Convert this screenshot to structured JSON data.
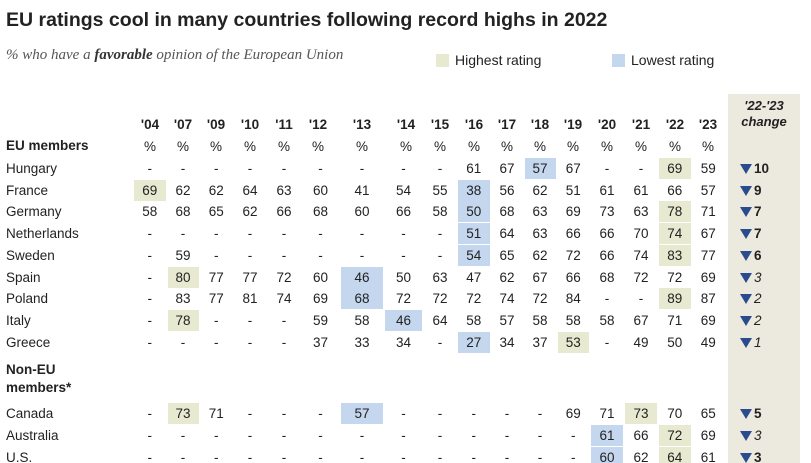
{
  "header": {
    "title": "EU ratings cool in many countries following record highs in 2022",
    "subtitle": [
      "% who have a ",
      "favorable",
      " opinion of the European Union"
    ]
  },
  "legend": [
    {
      "label": "Highest rating",
      "color": "#e7e9d0"
    },
    {
      "label": "Lowest rating",
      "color": "#c5d7ef"
    }
  ],
  "table": {
    "columns": [
      "'04",
      "'07",
      "'09",
      "'10",
      "'11",
      "'12",
      "'13",
      "'14",
      "'15",
      "'16",
      "'17",
      "'18",
      "'19",
      "'20",
      "'21",
      "'22",
      "'23"
    ],
    "unit": "%",
    "change_header": [
      "'22-'23",
      "change"
    ],
    "groups": [
      {
        "label": [
          "EU members"
        ],
        "rows": [
          {
            "name": "Hungary",
            "values": [
              "-",
              "-",
              "-",
              "-",
              "-",
              "-",
              "-",
              "-",
              "-",
              61,
              67,
              57,
              67,
              "-",
              "-",
              69,
              59
            ],
            "highest": [
              15
            ],
            "lowest": [
              11
            ],
            "change": 10,
            "change_bold": true
          },
          {
            "name": "France",
            "values": [
              69,
              62,
              62,
              64,
              63,
              60,
              41,
              54,
              55,
              38,
              56,
              62,
              51,
              61,
              61,
              66,
              57
            ],
            "highest": [
              0
            ],
            "lowest": [
              9
            ],
            "change": 9,
            "change_bold": true
          },
          {
            "name": "Germany",
            "values": [
              58,
              68,
              65,
              62,
              66,
              68,
              60,
              66,
              58,
              50,
              68,
              63,
              69,
              73,
              63,
              78,
              71
            ],
            "highest": [
              15
            ],
            "lowest": [
              9
            ],
            "change": 7,
            "change_bold": true
          },
          {
            "name": "Netherlands",
            "values": [
              "-",
              "-",
              "-",
              "-",
              "-",
              "-",
              "-",
              "-",
              "-",
              51,
              64,
              63,
              66,
              66,
              70,
              74,
              67
            ],
            "highest": [
              15
            ],
            "lowest": [
              9
            ],
            "change": 7,
            "change_bold": true
          },
          {
            "name": "Sweden",
            "values": [
              "-",
              59,
              "-",
              "-",
              "-",
              "-",
              "-",
              "-",
              "-",
              54,
              65,
              62,
              72,
              66,
              74,
              83,
              77
            ],
            "highest": [
              15
            ],
            "lowest": [
              9
            ],
            "change": 6,
            "change_bold": true
          },
          {
            "name": "Spain",
            "values": [
              "-",
              80,
              77,
              77,
              72,
              60,
              46,
              50,
              63,
              47,
              62,
              67,
              66,
              68,
              72,
              72,
              69
            ],
            "highest": [
              1
            ],
            "lowest": [
              6
            ],
            "change": 3,
            "change_bold": false
          },
          {
            "name": "Poland",
            "values": [
              "-",
              83,
              77,
              81,
              74,
              69,
              68,
              72,
              72,
              72,
              74,
              72,
              84,
              "-",
              "-",
              89,
              87
            ],
            "highest": [
              15
            ],
            "lowest": [
              6
            ],
            "change": 2,
            "change_bold": false
          },
          {
            "name": "Italy",
            "values": [
              "-",
              78,
              "-",
              "-",
              "-",
              59,
              58,
              46,
              64,
              58,
              57,
              58,
              58,
              58,
              67,
              71,
              69
            ],
            "highest": [
              1
            ],
            "lowest": [
              7
            ],
            "change": 2,
            "change_bold": false
          },
          {
            "name": "Greece",
            "values": [
              "-",
              "-",
              "-",
              "-",
              "-",
              37,
              33,
              34,
              "-",
              27,
              34,
              37,
              53,
              "-",
              49,
              50,
              49
            ],
            "highest": [
              12
            ],
            "lowest": [
              9
            ],
            "change": 1,
            "change_bold": false
          }
        ]
      },
      {
        "label": [
          "Non-EU",
          "members*"
        ],
        "rows": [
          {
            "name": "Canada",
            "values": [
              "-",
              73,
              71,
              "-",
              "-",
              "-",
              57,
              "-",
              "-",
              "-",
              "-",
              "-",
              69,
              71,
              73,
              70,
              65
            ],
            "highest": [
              1,
              14
            ],
            "lowest": [
              6
            ],
            "change": 5,
            "change_bold": true
          },
          {
            "name": "Australia",
            "values": [
              "-",
              "-",
              "-",
              "-",
              "-",
              "-",
              "-",
              "-",
              "-",
              "-",
              "-",
              "-",
              "-",
              61,
              66,
              72,
              69
            ],
            "highest": [
              15
            ],
            "lowest": [
              13
            ],
            "change": 3,
            "change_bold": false
          },
          {
            "name": "U.S.",
            "values": [
              "-",
              "-",
              "-",
              "-",
              "-",
              "-",
              "-",
              "-",
              "-",
              "-",
              "-",
              "-",
              "-",
              60,
              62,
              64,
              61
            ],
            "highest": [
              15
            ],
            "lowest": [
              13
            ],
            "change": 3,
            "change_bold": true
          }
        ]
      }
    ]
  }
}
